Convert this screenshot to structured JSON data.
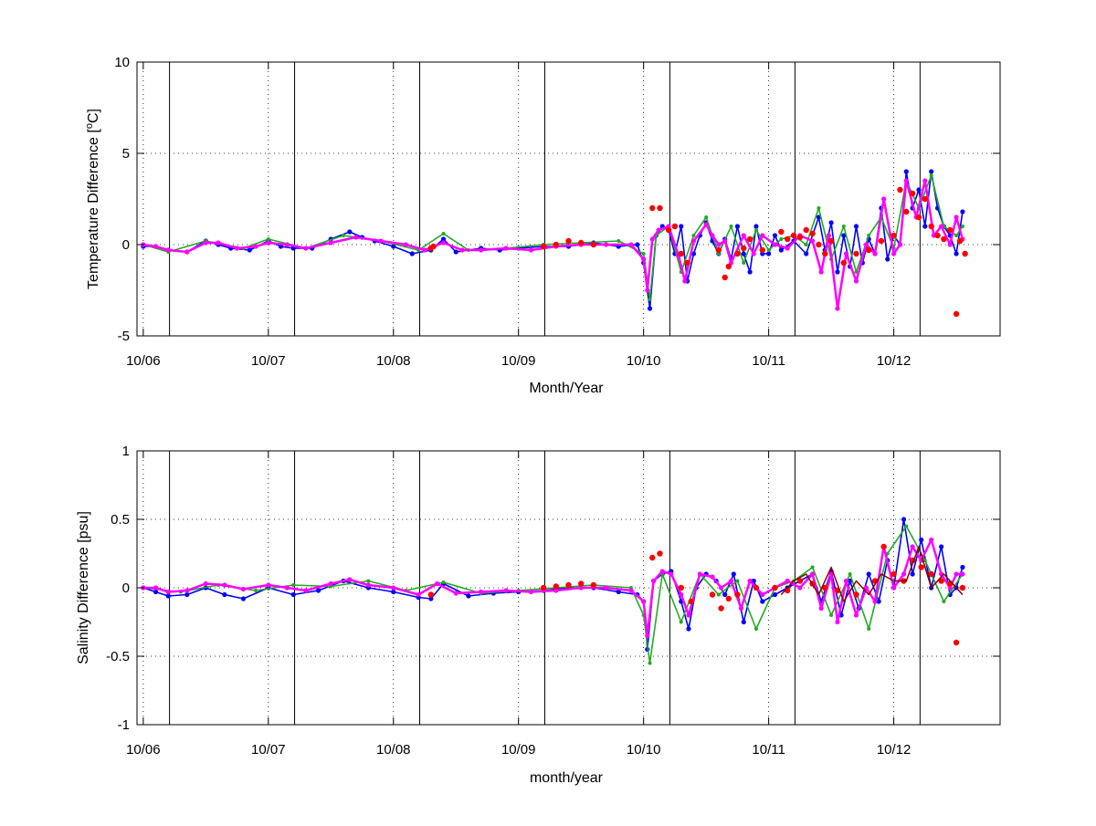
{
  "colors": {
    "blue": "#0000ff",
    "green": "#22aa22",
    "magenta": "#ff00ff",
    "red": "#ff0000",
    "darkred": "#8b0000"
  },
  "chart_data": [
    {
      "type": "line",
      "title": "",
      "xlabel": "Month/Year",
      "ylabel": "Temperature Difference [°C]",
      "ylabel_parts": {
        "before": "Temperature Difference [",
        "sup": "o",
        "after": "C]"
      },
      "xticks": [
        "10/06",
        "10/07",
        "10/08",
        "10/09",
        "10/10",
        "10/11",
        "10/12"
      ],
      "yticks": [
        "10",
        "5",
        "0",
        "-5"
      ],
      "ylim": [
        -5,
        10
      ],
      "grid": "dotted",
      "series": [
        {
          "color": "blue",
          "x": [
            2006.0,
            2006.1,
            2006.2,
            2006.35,
            2006.5,
            2006.6,
            2006.7,
            2006.85,
            2007.0,
            2007.1,
            2007.2,
            2007.35,
            2007.5,
            2007.65,
            2007.75,
            2007.85,
            2008.0,
            2008.15,
            2008.3,
            2008.4,
            2008.5,
            2008.7,
            2008.85,
            2009.0,
            2009.2,
            2009.4,
            2009.6,
            2009.8,
            2009.95,
            2010.0,
            2010.05,
            2010.1,
            2010.15,
            2010.2,
            2010.25,
            2010.3,
            2010.35,
            2010.4,
            2010.45,
            2010.5,
            2010.55,
            2010.6,
            2010.65,
            2010.7,
            2010.75,
            2010.8,
            2010.85,
            2010.9,
            2010.95,
            2011.0,
            2011.05,
            2011.1,
            2011.2,
            2011.3,
            2011.4,
            2011.45,
            2011.5,
            2011.55,
            2011.6,
            2011.65,
            2011.7,
            2011.75,
            2011.8,
            2011.85,
            2011.9,
            2011.95,
            2012.0,
            2012.05,
            2012.1,
            2012.15,
            2012.2,
            2012.25,
            2012.3,
            2012.35,
            2012.4,
            2012.45,
            2012.5,
            2012.55
          ],
          "y": [
            -0.1,
            -0.1,
            -0.3,
            -0.4,
            0.2,
            0.0,
            -0.2,
            -0.3,
            0.2,
            -0.1,
            -0.2,
            -0.2,
            0.3,
            0.7,
            0.4,
            0.2,
            -0.1,
            -0.5,
            -0.3,
            0.3,
            -0.4,
            -0.2,
            -0.3,
            -0.2,
            -0.1,
            -0.1,
            0.1,
            -0.1,
            0.0,
            -1.0,
            -3.5,
            0.5,
            1.0,
            0.8,
            -0.5,
            1.0,
            -2.0,
            -0.5,
            0.5,
            1.2,
            0.2,
            -0.5,
            0.3,
            -0.8,
            1.0,
            -0.5,
            -1.5,
            1.0,
            -0.5,
            -0.5,
            0.5,
            -0.3,
            0.2,
            -0.5,
            1.5,
            -0.3,
            1.2,
            -1.5,
            0.5,
            -1.2,
            1.0,
            -1.0,
            0.3,
            -0.5,
            2.0,
            -0.8,
            0.5,
            0.0,
            4.0,
            2.0,
            3.0,
            1.0,
            4.0,
            2.0,
            1.0,
            0.5,
            -0.5,
            1.8
          ]
        },
        {
          "color": "green",
          "x": [
            2006.0,
            2006.2,
            2006.5,
            2006.8,
            2007.0,
            2007.3,
            2007.6,
            2007.9,
            2008.2,
            2008.4,
            2008.6,
            2008.9,
            2009.2,
            2009.5,
            2009.8,
            2010.0,
            2010.05,
            2010.1,
            2010.2,
            2010.3,
            2010.4,
            2010.5,
            2010.6,
            2010.7,
            2010.8,
            2010.9,
            2011.0,
            2011.1,
            2011.2,
            2011.3,
            2011.4,
            2011.5,
            2011.6,
            2011.7,
            2011.8,
            2011.9,
            2012.0,
            2012.1,
            2012.2,
            2012.3,
            2012.4,
            2012.5,
            2012.55
          ],
          "y": [
            0.0,
            -0.4,
            0.2,
            -0.2,
            0.3,
            -0.2,
            0.5,
            0.2,
            -0.3,
            0.6,
            -0.3,
            -0.2,
            0.0,
            0.1,
            0.2,
            -0.5,
            -3.0,
            0.5,
            1.0,
            -1.5,
            0.5,
            1.5,
            -0.5,
            1.0,
            -1.0,
            0.8,
            -0.3,
            0.3,
            0.5,
            0.0,
            2.0,
            -0.8,
            1.0,
            -1.5,
            0.5,
            1.5,
            -0.2,
            3.5,
            2.0,
            3.8,
            1.0,
            0.5,
            1.0
          ]
        },
        {
          "color": "magenta",
          "x": [
            2006.0,
            2006.1,
            2006.2,
            2006.35,
            2006.5,
            2006.6,
            2006.75,
            2006.9,
            2007.0,
            2007.15,
            2007.3,
            2007.5,
            2007.7,
            2007.9,
            2008.1,
            2008.25,
            2008.4,
            2008.55,
            2008.7,
            2008.9,
            2009.1,
            2009.3,
            2009.5,
            2009.7,
            2009.9,
            2010.0,
            2010.03,
            2010.07,
            2010.12,
            2010.2,
            2010.28,
            2010.33,
            2010.4,
            2010.5,
            2010.55,
            2010.6,
            2010.65,
            2010.7,
            2010.8,
            2010.88,
            2010.95,
            2011.05,
            2011.15,
            2011.25,
            2011.35,
            2011.42,
            2011.48,
            2011.55,
            2011.62,
            2011.7,
            2011.78,
            2011.85,
            2011.92,
            2012.0,
            2012.05,
            2012.1,
            2012.18,
            2012.25,
            2012.32,
            2012.38,
            2012.45,
            2012.5,
            2012.55
          ],
          "y": [
            0.0,
            -0.1,
            -0.3,
            -0.4,
            0.1,
            0.1,
            -0.2,
            -0.1,
            0.1,
            0.0,
            -0.2,
            0.1,
            0.4,
            0.2,
            0.0,
            -0.3,
            0.1,
            -0.3,
            -0.3,
            -0.2,
            -0.3,
            -0.1,
            0.0,
            0.0,
            0.0,
            -0.8,
            -2.5,
            0.3,
            0.8,
            1.0,
            -0.6,
            -2.0,
            0.2,
            1.1,
            0.5,
            0.0,
            0.2,
            -1.0,
            0.5,
            -0.5,
            0.5,
            0.0,
            -0.2,
            0.5,
            0.2,
            -1.5,
            0.5,
            -3.5,
            -0.5,
            -2.0,
            0.0,
            -0.5,
            2.5,
            -0.5,
            0.0,
            3.5,
            1.5,
            3.5,
            0.5,
            1.0,
            0.0,
            1.5,
            0.3
          ]
        },
        {
          "color": "red",
          "mode": "markers",
          "x": [
            2008.3,
            2008.32,
            2009.2,
            2009.3,
            2009.4,
            2009.5,
            2009.6,
            2010.07,
            2010.13,
            2010.2,
            2010.25,
            2010.3,
            2010.35,
            2010.6,
            2010.65,
            2010.68,
            2010.75,
            2010.8,
            2010.85,
            2010.95,
            2011.1,
            2011.15,
            2011.2,
            2011.25,
            2011.3,
            2011.35,
            2011.4,
            2011.45,
            2011.5,
            2011.6,
            2011.7,
            2011.8,
            2011.9,
            2012.0,
            2012.05,
            2012.1,
            2012.15,
            2012.2,
            2012.25,
            2012.3,
            2012.35,
            2012.4,
            2012.45,
            2012.5,
            2012.53,
            2012.57
          ],
          "y": [
            -0.2,
            -0.1,
            -0.1,
            0.0,
            0.2,
            0.1,
            0.0,
            2.0,
            2.0,
            0.8,
            1.0,
            -0.5,
            -1.0,
            -0.3,
            -1.8,
            -1.2,
            -0.5,
            -0.2,
            0.3,
            -0.3,
            0.7,
            0.3,
            0.5,
            0.4,
            0.8,
            0.6,
            0.0,
            -0.5,
            0.2,
            -1.0,
            -0.5,
            -0.3,
            0.2,
            0.5,
            3.0,
            1.8,
            2.8,
            1.5,
            2.5,
            1.0,
            0.5,
            0.3,
            0.8,
            -3.8,
            0.2,
            -0.5
          ]
        }
      ]
    },
    {
      "type": "line",
      "title": "",
      "xlabel": "month/year",
      "ylabel": "Salinity Difference [psu]",
      "xticks": [
        "10/06",
        "10/07",
        "10/08",
        "10/09",
        "10/10",
        "10/11",
        "10/12"
      ],
      "yticks": [
        "1",
        "0.5",
        "0",
        "-0.5",
        "-1"
      ],
      "ylim": [
        -1,
        1
      ],
      "grid": "dotted",
      "series": [
        {
          "color": "blue",
          "x": [
            2006.0,
            2006.1,
            2006.2,
            2006.35,
            2006.5,
            2006.65,
            2006.8,
            2007.0,
            2007.2,
            2007.4,
            2007.6,
            2007.8,
            2008.0,
            2008.2,
            2008.3,
            2008.4,
            2008.6,
            2008.8,
            2009.0,
            2009.2,
            2009.4,
            2009.6,
            2009.8,
            2009.95,
            2010.0,
            2010.03,
            2010.08,
            2010.15,
            2010.22,
            2010.3,
            2010.36,
            2010.42,
            2010.5,
            2010.58,
            2010.65,
            2010.72,
            2010.8,
            2010.88,
            2010.95,
            2011.05,
            2011.15,
            2011.25,
            2011.35,
            2011.42,
            2011.5,
            2011.58,
            2011.65,
            2011.72,
            2011.8,
            2011.88,
            2011.95,
            2012.0,
            2012.08,
            2012.15,
            2012.22,
            2012.3,
            2012.38,
            2012.45,
            2012.5,
            2012.55
          ],
          "y": [
            0.0,
            -0.03,
            -0.06,
            -0.05,
            0.0,
            -0.05,
            -0.08,
            0.0,
            -0.05,
            -0.02,
            0.05,
            0.0,
            -0.03,
            -0.07,
            -0.08,
            0.03,
            -0.06,
            -0.04,
            -0.03,
            -0.02,
            0.0,
            0.0,
            -0.03,
            -0.05,
            -0.1,
            -0.45,
            0.05,
            0.1,
            0.12,
            -0.1,
            -0.3,
            0.0,
            0.1,
            0.05,
            -0.05,
            0.1,
            -0.25,
            0.05,
            -0.1,
            -0.05,
            0.0,
            0.05,
            0.1,
            -0.1,
            0.12,
            -0.2,
            0.05,
            -0.15,
            0.1,
            -0.1,
            0.2,
            0.0,
            0.5,
            0.1,
            0.35,
            0.0,
            0.3,
            -0.05,
            0.0,
            0.15
          ]
        },
        {
          "color": "green",
          "x": [
            2006.0,
            2006.3,
            2006.6,
            2006.9,
            2007.2,
            2007.5,
            2007.8,
            2008.1,
            2008.4,
            2008.7,
            2009.0,
            2009.3,
            2009.6,
            2009.9,
            2010.0,
            2010.05,
            2010.15,
            2010.3,
            2010.45,
            2010.6,
            2010.75,
            2010.9,
            2011.05,
            2011.2,
            2011.35,
            2011.5,
            2011.65,
            2011.8,
            2011.95,
            2012.1,
            2012.25,
            2012.4,
            2012.55
          ],
          "y": [
            0.0,
            -0.03,
            0.02,
            -0.02,
            0.02,
            0.01,
            0.05,
            -0.02,
            0.04,
            -0.04,
            -0.02,
            0.0,
            0.02,
            0.0,
            -0.2,
            -0.55,
            0.1,
            -0.25,
            0.1,
            -0.05,
            0.05,
            -0.3,
            0.0,
            0.05,
            0.15,
            -0.2,
            0.1,
            -0.3,
            0.25,
            0.45,
            0.2,
            -0.1,
            0.1
          ]
        },
        {
          "color": "magenta",
          "x": [
            2006.0,
            2006.1,
            2006.2,
            2006.35,
            2006.5,
            2006.65,
            2006.8,
            2007.0,
            2007.15,
            2007.3,
            2007.5,
            2007.65,
            2007.8,
            2008.0,
            2008.2,
            2008.35,
            2008.5,
            2008.7,
            2008.9,
            2009.1,
            2009.3,
            2009.5,
            2009.7,
            2009.9,
            2010.0,
            2010.03,
            2010.08,
            2010.15,
            2010.22,
            2010.3,
            2010.36,
            2010.45,
            2010.55,
            2010.62,
            2010.7,
            2010.78,
            2010.85,
            2010.95,
            2011.05,
            2011.15,
            2011.25,
            2011.35,
            2011.42,
            2011.5,
            2011.55,
            2011.62,
            2011.7,
            2011.78,
            2011.85,
            2011.92,
            2012.0,
            2012.08,
            2012.15,
            2012.22,
            2012.3,
            2012.38,
            2012.45,
            2012.5,
            2012.55
          ],
          "y": [
            0.0,
            0.0,
            -0.03,
            -0.02,
            0.03,
            0.02,
            -0.01,
            0.02,
            0.0,
            -0.02,
            0.03,
            0.06,
            0.02,
            0.0,
            -0.05,
            0.03,
            -0.04,
            -0.03,
            -0.02,
            -0.03,
            -0.02,
            0.0,
            0.0,
            -0.02,
            -0.1,
            -0.35,
            0.05,
            0.12,
            0.1,
            -0.05,
            -0.2,
            0.1,
            0.08,
            0.0,
            0.05,
            -0.15,
            0.05,
            -0.05,
            0.0,
            0.05,
            0.0,
            0.1,
            -0.15,
            0.1,
            -0.25,
            0.05,
            -0.2,
            0.0,
            -0.1,
            0.3,
            0.0,
            0.1,
            0.3,
            0.2,
            0.35,
            0.1,
            0.0,
            0.1,
            0.1
          ]
        },
        {
          "color": "red",
          "mode": "markers",
          "x": [
            2008.3,
            2009.2,
            2009.3,
            2009.4,
            2009.5,
            2009.6,
            2010.07,
            2010.13,
            2010.3,
            2010.38,
            2010.55,
            2010.62,
            2010.68,
            2010.75,
            2010.9,
            2011.05,
            2011.15,
            2011.25,
            2011.35,
            2011.45,
            2011.55,
            2011.7,
            2011.85,
            2011.92,
            2012.0,
            2012.08,
            2012.15,
            2012.22,
            2012.3,
            2012.38,
            2012.45,
            2012.5,
            2012.55
          ],
          "y": [
            -0.05,
            0.0,
            0.01,
            0.02,
            0.03,
            0.02,
            0.22,
            0.25,
            0.0,
            -0.1,
            -0.05,
            -0.15,
            -0.08,
            -0.05,
            0.0,
            0.0,
            -0.02,
            0.05,
            0.03,
            0.0,
            -0.02,
            -0.05,
            0.05,
            0.3,
            0.1,
            0.05,
            0.2,
            0.15,
            0.1,
            0.05,
            0.03,
            -0.4,
            0.0
          ]
        },
        {
          "color": "darkred",
          "x": [
            2011.1,
            2011.2,
            2011.3,
            2011.4,
            2011.5,
            2011.6,
            2011.7,
            2011.8,
            2011.9,
            2012.0,
            2012.1,
            2012.2,
            2012.3,
            2012.4,
            2012.5,
            2012.55
          ],
          "y": [
            -0.05,
            0.05,
            0.1,
            -0.05,
            0.15,
            -0.1,
            0.05,
            -0.05,
            0.1,
            0.05,
            0.05,
            0.3,
            0.0,
            0.1,
            0.0,
            -0.05
          ]
        }
      ]
    }
  ]
}
